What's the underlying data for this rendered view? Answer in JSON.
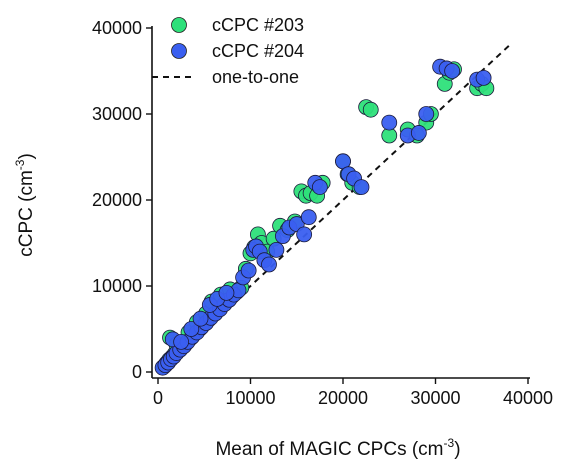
{
  "chart_data": {
    "type": "scatter",
    "xlabel": "Mean of  MAGIC CPCs (cm",
    "xlabel_sup": "-3",
    "xlabel_close": ")",
    "ylabel": "cCPC (cm",
    "ylabel_sup": "-3",
    "ylabel_close": ")",
    "xlim": [
      0,
      40000
    ],
    "ylim": [
      0,
      40000
    ],
    "xticks": [
      0,
      10000,
      20000,
      30000,
      40000
    ],
    "yticks": [
      0,
      10000,
      20000,
      30000,
      40000
    ],
    "xtick_labels": [
      "0",
      "10000",
      "20000",
      "30000",
      "40000"
    ],
    "ytick_labels": [
      "0",
      "10000",
      "20000",
      "30000",
      "40000"
    ],
    "grid": false,
    "legend_position": "top-left",
    "reference_line": {
      "name": "one-to-one",
      "style": "dashed",
      "color": "#111111",
      "from": [
        0,
        0
      ],
      "to": [
        38000,
        38000
      ]
    },
    "series": [
      {
        "name": "cCPC #203",
        "color": "#2ee07a",
        "x": [
          600,
          900,
          1200,
          1500,
          1800,
          2200,
          2600,
          3000,
          3500,
          4000,
          4500,
          5000,
          5500,
          6000,
          6500,
          7000,
          7500,
          8000,
          8500,
          9000,
          1300,
          2000,
          3300,
          4200,
          5200,
          5800,
          6800,
          7800,
          9500,
          10000,
          10400,
          10800,
          11200,
          11800,
          12500,
          13200,
          14000,
          14800,
          15500,
          16000,
          16500,
          17200,
          17800,
          20000,
          20500,
          21000,
          21800,
          22500,
          23000,
          25000,
          27000,
          28000,
          29000,
          29500,
          31000,
          31500,
          32000,
          34500,
          35000,
          35500
        ],
        "y": [
          600,
          1000,
          1400,
          1700,
          2100,
          2500,
          2900,
          3300,
          3900,
          4500,
          5000,
          5600,
          6100,
          6700,
          7200,
          7800,
          8300,
          8800,
          9300,
          9800,
          4000,
          3200,
          4600,
          5800,
          6800,
          8200,
          9000,
          9600,
          12000,
          13800,
          14500,
          16000,
          15000,
          14000,
          15500,
          17000,
          16500,
          17500,
          21000,
          20500,
          20800,
          20500,
          22000,
          24500,
          23000,
          22000,
          21500,
          30800,
          30500,
          27500,
          28200,
          27500,
          29000,
          30000,
          33500,
          34800,
          35200,
          33000,
          33500,
          33000
        ]
      },
      {
        "name": "cCPC #204",
        "color": "#3a5ff0",
        "x": [
          500,
          800,
          1100,
          1400,
          1700,
          2000,
          2400,
          2800,
          3200,
          3700,
          4200,
          4700,
          5200,
          5700,
          6200,
          6700,
          7200,
          7700,
          8200,
          8700,
          1600,
          2500,
          3600,
          4600,
          5600,
          6400,
          7400,
          9200,
          9800,
          10300,
          10600,
          11000,
          11500,
          12000,
          12800,
          13500,
          14200,
          15000,
          15800,
          16300,
          17000,
          17500,
          20000,
          20600,
          21200,
          22000,
          25000,
          27000,
          28200,
          29000,
          30500,
          31200,
          31800,
          34500,
          35200
        ],
        "y": [
          500,
          800,
          1100,
          1500,
          1800,
          2200,
          2600,
          3000,
          3500,
          4100,
          4600,
          5200,
          5700,
          6300,
          6800,
          7300,
          7900,
          8400,
          9000,
          9500,
          3800,
          3500,
          5000,
          6200,
          7800,
          8500,
          9200,
          11000,
          11800,
          14200,
          14600,
          14000,
          13000,
          12500,
          14200,
          15800,
          16800,
          17200,
          16000,
          18000,
          22000,
          21500,
          24500,
          23000,
          22500,
          21500,
          29000,
          27500,
          27800,
          30000,
          35500,
          35300,
          35000,
          34000,
          34200
        ]
      }
    ]
  }
}
